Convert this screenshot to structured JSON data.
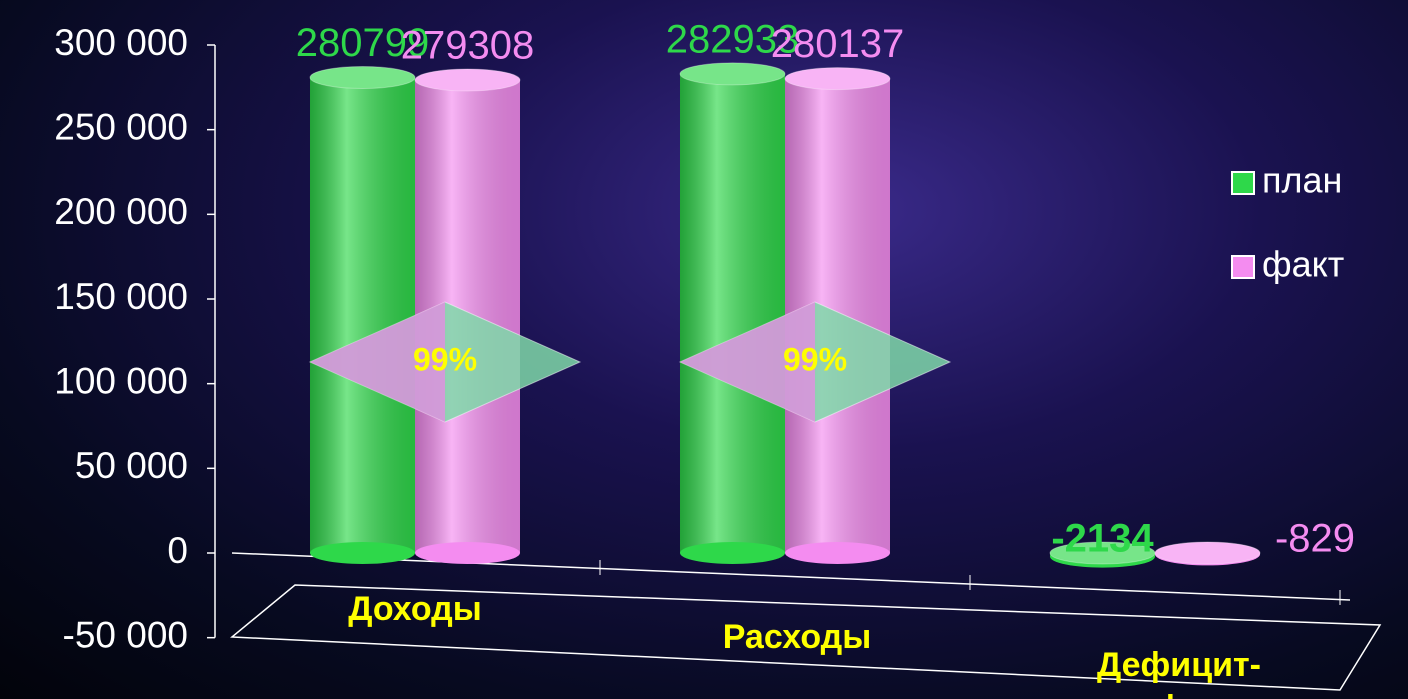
{
  "chart_data": {
    "type": "bar",
    "categories": [
      "Доходы",
      "Расходы",
      "Дефицит-профицит"
    ],
    "series": [
      {
        "name": "план",
        "color": "#2ed84a",
        "values": [
          280799,
          282933,
          -2134
        ]
      },
      {
        "name": "факт",
        "color": "#f48cf0",
        "values": [
          279308,
          280137,
          -829
        ]
      }
    ],
    "ylim": [
      -50000,
      300000
    ],
    "yticks": [
      {
        "value": -50000,
        "label": "-50 000"
      },
      {
        "value": 0,
        "label": "0"
      },
      {
        "value": 50000,
        "label": "50 000"
      },
      {
        "value": 100000,
        "label": "100 000"
      },
      {
        "value": 150000,
        "label": "150 000"
      },
      {
        "value": 200000,
        "label": "200 000"
      },
      {
        "value": 250000,
        "label": "250 000"
      },
      {
        "value": 300000,
        "label": "300 000"
      }
    ],
    "annotations": [
      "99%",
      "99%"
    ],
    "legend": "right",
    "grid": false
  }
}
